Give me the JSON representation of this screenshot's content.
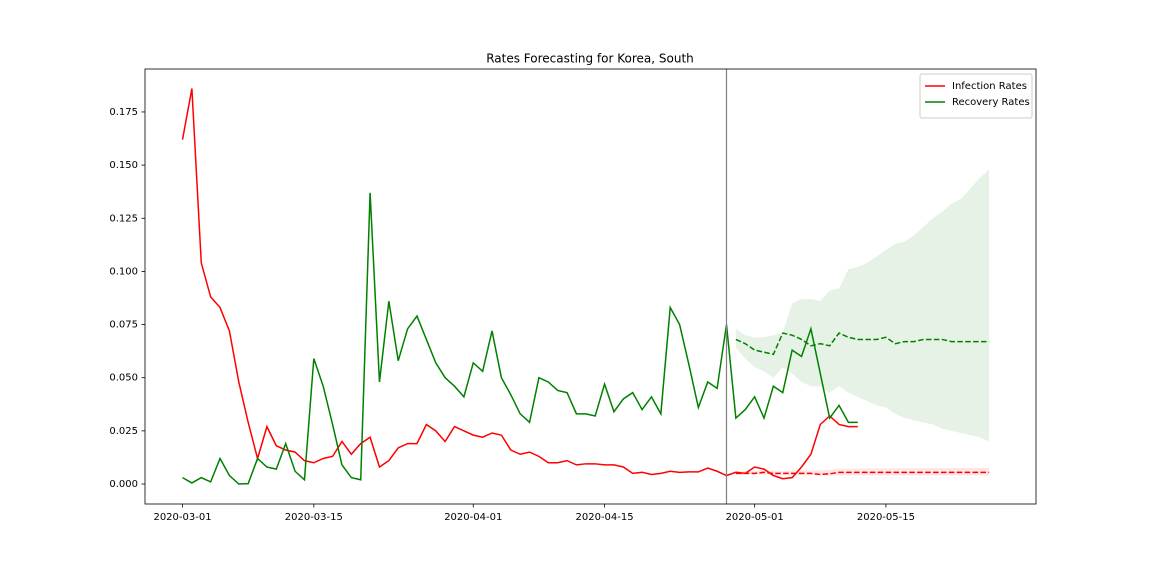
{
  "chart_data": {
    "type": "line",
    "title": "Rates Forecasting for Korea, South",
    "x": [
      "2020-03-01",
      "2020-03-02",
      "2020-03-03",
      "2020-03-04",
      "2020-03-05",
      "2020-03-06",
      "2020-03-07",
      "2020-03-08",
      "2020-03-09",
      "2020-03-10",
      "2020-03-11",
      "2020-03-12",
      "2020-03-13",
      "2020-03-14",
      "2020-03-15",
      "2020-03-16",
      "2020-03-17",
      "2020-03-18",
      "2020-03-19",
      "2020-03-20",
      "2020-03-21",
      "2020-03-22",
      "2020-03-23",
      "2020-03-24",
      "2020-03-25",
      "2020-03-26",
      "2020-03-27",
      "2020-03-28",
      "2020-03-29",
      "2020-03-30",
      "2020-03-31",
      "2020-04-01",
      "2020-04-02",
      "2020-04-03",
      "2020-04-04",
      "2020-04-05",
      "2020-04-06",
      "2020-04-07",
      "2020-04-08",
      "2020-04-09",
      "2020-04-10",
      "2020-04-11",
      "2020-04-12",
      "2020-04-13",
      "2020-04-14",
      "2020-04-15",
      "2020-04-16",
      "2020-04-17",
      "2020-04-18",
      "2020-04-19",
      "2020-04-20",
      "2020-04-21",
      "2020-04-22",
      "2020-04-23",
      "2020-04-24",
      "2020-04-25",
      "2020-04-26",
      "2020-04-27",
      "2020-04-28",
      "2020-04-29",
      "2020-04-30",
      "2020-05-01",
      "2020-05-02",
      "2020-05-03",
      "2020-05-04",
      "2020-05-05",
      "2020-05-06",
      "2020-05-07",
      "2020-05-08",
      "2020-05-09",
      "2020-05-10",
      "2020-05-11",
      "2020-05-12"
    ],
    "series": [
      {
        "name": "Infection Rates",
        "color": "#ff0000",
        "values": [
          0.162,
          0.186,
          0.104,
          0.088,
          0.083,
          0.072,
          0.048,
          0.029,
          0.012,
          0.027,
          0.018,
          0.016,
          0.015,
          0.011,
          0.01,
          0.012,
          0.013,
          0.02,
          0.014,
          0.019,
          0.022,
          0.008,
          0.011,
          0.017,
          0.019,
          0.019,
          0.028,
          0.025,
          0.02,
          0.027,
          0.025,
          0.023,
          0.022,
          0.024,
          0.023,
          0.016,
          0.014,
          0.015,
          0.013,
          0.01,
          0.01,
          0.011,
          0.009,
          0.0095,
          0.0095,
          0.009,
          0.009,
          0.008,
          0.005,
          0.0055,
          0.0045,
          0.005,
          0.006,
          0.0055,
          0.0057,
          0.0057,
          0.0075,
          0.006,
          0.004,
          0.0055,
          0.005,
          0.008,
          0.007,
          0.004,
          0.0025,
          0.003,
          0.008,
          0.014,
          0.028,
          0.032,
          0.028,
          0.027,
          0.027
        ]
      },
      {
        "name": "Recovery Rates",
        "color": "#008000",
        "values": [
          0.003,
          0.0005,
          0.003,
          0.001,
          0.012,
          0.004,
          0.0,
          0.0002,
          0.012,
          0.008,
          0.007,
          0.019,
          0.006,
          0.002,
          0.059,
          0.046,
          0.028,
          0.009,
          0.003,
          0.002,
          0.137,
          0.048,
          0.086,
          0.058,
          0.073,
          0.079,
          0.068,
          0.057,
          0.05,
          0.046,
          0.041,
          0.057,
          0.053,
          0.072,
          0.05,
          0.042,
          0.033,
          0.029,
          0.05,
          0.048,
          0.044,
          0.043,
          0.033,
          0.033,
          0.032,
          0.047,
          0.034,
          0.04,
          0.043,
          0.035,
          0.041,
          0.033,
          0.083,
          0.075,
          0.056,
          0.036,
          0.048,
          0.045,
          0.075,
          0.031,
          0.035,
          0.041,
          0.031,
          0.046,
          0.043,
          0.063,
          0.06,
          0.073,
          0.052,
          0.031,
          0.037,
          0.029,
          0.029
        ]
      },
      {
        "color": "#ff0000",
        "dash": true,
        "x": [
          "2020-04-29",
          "2020-04-30",
          "2020-05-01",
          "2020-05-02",
          "2020-05-03",
          "2020-05-04",
          "2020-05-05",
          "2020-05-06",
          "2020-05-07",
          "2020-05-08",
          "2020-05-09",
          "2020-05-10",
          "2020-05-11",
          "2020-05-12",
          "2020-05-13",
          "2020-05-14",
          "2020-05-15",
          "2020-05-16",
          "2020-05-17",
          "2020-05-18",
          "2020-05-19",
          "2020-05-20",
          "2020-05-21",
          "2020-05-22",
          "2020-05-23",
          "2020-05-24",
          "2020-05-25",
          "2020-05-26"
        ],
        "values": [
          0.005,
          0.005,
          0.005,
          0.0055,
          0.005,
          0.005,
          0.005,
          0.005,
          0.005,
          0.0045,
          0.0048,
          0.0055,
          0.0055,
          0.0055,
          0.0055,
          0.0055,
          0.0055,
          0.0055,
          0.0055,
          0.0055,
          0.0055,
          0.0055,
          0.0055,
          0.0055,
          0.0055,
          0.0055,
          0.0055,
          0.0055
        ],
        "lower": [
          0.0045,
          0.0045,
          0.0045,
          0.0045,
          0.0043,
          0.0043,
          0.0043,
          0.0042,
          0.0042,
          0.004,
          0.004,
          0.004,
          0.004,
          0.004,
          0.004,
          0.004,
          0.004,
          0.004,
          0.004,
          0.004,
          0.004,
          0.004,
          0.004,
          0.004,
          0.004,
          0.004,
          0.004,
          0.004
        ],
        "upper": [
          0.006,
          0.006,
          0.006,
          0.0065,
          0.0062,
          0.0062,
          0.0063,
          0.0063,
          0.0065,
          0.0065,
          0.0067,
          0.0072,
          0.0072,
          0.0072,
          0.0073,
          0.0073,
          0.0073,
          0.0074,
          0.0074,
          0.0074,
          0.0075,
          0.0075,
          0.0075,
          0.0075,
          0.0076,
          0.0076,
          0.0076,
          0.0076
        ]
      },
      {
        "color": "#008000",
        "dash": true,
        "x": [
          "2020-04-29",
          "2020-04-30",
          "2020-05-01",
          "2020-05-02",
          "2020-05-03",
          "2020-05-04",
          "2020-05-05",
          "2020-05-06",
          "2020-05-07",
          "2020-05-08",
          "2020-05-09",
          "2020-05-10",
          "2020-05-11",
          "2020-05-12",
          "2020-05-13",
          "2020-05-14",
          "2020-05-15",
          "2020-05-16",
          "2020-05-17",
          "2020-05-18",
          "2020-05-19",
          "2020-05-20",
          "2020-05-21",
          "2020-05-22",
          "2020-05-23",
          "2020-05-24",
          "2020-05-25",
          "2020-05-26"
        ],
        "values": [
          0.068,
          0.066,
          0.063,
          0.062,
          0.061,
          0.071,
          0.07,
          0.068,
          0.065,
          0.066,
          0.065,
          0.071,
          0.069,
          0.068,
          0.068,
          0.068,
          0.069,
          0.066,
          0.067,
          0.067,
          0.068,
          0.068,
          0.068,
          0.067,
          0.067,
          0.067,
          0.067,
          0.067
        ],
        "lower": [
          0.064,
          0.059,
          0.055,
          0.053,
          0.05,
          0.055,
          0.052,
          0.048,
          0.046,
          0.046,
          0.043,
          0.046,
          0.043,
          0.041,
          0.039,
          0.037,
          0.036,
          0.033,
          0.031,
          0.03,
          0.029,
          0.028,
          0.026,
          0.025,
          0.024,
          0.023,
          0.022,
          0.02
        ],
        "upper": [
          0.073,
          0.07,
          0.069,
          0.069,
          0.07,
          0.071,
          0.085,
          0.087,
          0.087,
          0.086,
          0.091,
          0.092,
          0.101,
          0.102,
          0.104,
          0.107,
          0.11,
          0.113,
          0.114,
          0.117,
          0.121,
          0.125,
          0.128,
          0.132,
          0.134,
          0.139,
          0.144,
          0.148
        ]
      }
    ],
    "vline": "2020-04-28",
    "xlim": [
      "2020-02-26",
      "2020-05-31"
    ],
    "xticks": [
      "2020-03-01",
      "2020-03-15",
      "2020-04-01",
      "2020-04-15",
      "2020-05-01",
      "2020-05-15"
    ],
    "ylim": [
      -0.0094,
      0.1952
    ],
    "yticks": [
      {
        "value": 0,
        "label": "0.000"
      },
      {
        "value": 0.025,
        "label": "0.025"
      },
      {
        "value": 0.05,
        "label": "0.050"
      },
      {
        "value": 0.075,
        "label": "0.075"
      },
      {
        "value": 0.1,
        "label": "0.100"
      },
      {
        "value": 0.125,
        "label": "0.125"
      },
      {
        "value": 0.15,
        "label": "0.150"
      },
      {
        "value": 0.175,
        "label": "0.175"
      }
    ],
    "legend": "upper right"
  }
}
